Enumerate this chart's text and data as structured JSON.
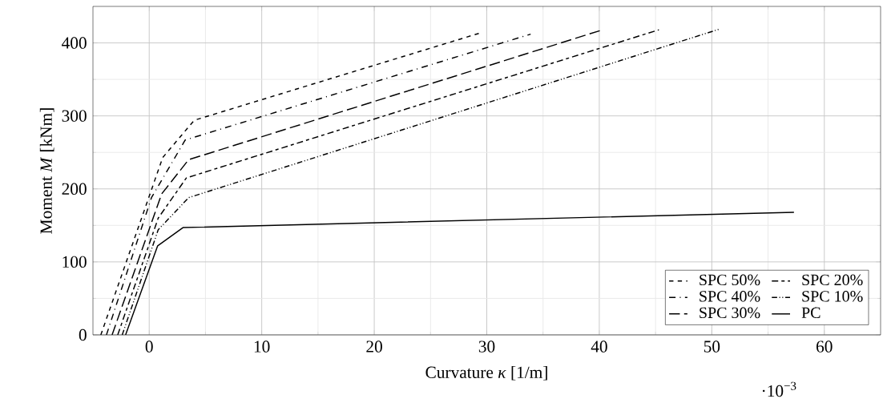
{
  "chart_data": {
    "type": "line",
    "xlabel": "Curvature *κ* [1/m]",
    "ylabel": "Moment *M* [kNm]",
    "annotations": [
      "·10$^{−3}$"
    ],
    "xlim": [
      -5,
      65
    ],
    "ylim": [
      0,
      450
    ],
    "xticks": [
      0,
      10,
      20,
      30,
      40,
      50,
      60
    ],
    "yticks": [
      0,
      100,
      200,
      300,
      400
    ],
    "grid": true,
    "legend": "bottom right",
    "marker": "none",
    "series": [
      {
        "name": "SPC 50%",
        "color": "#000000",
        "line_style": "dashed",
        "x": [
          -4.3,
          1.2,
          4.0,
          29.5
        ],
        "values": [
          0,
          243,
          294,
          414
        ]
      },
      {
        "name": "SPC 40%",
        "color": "#000000",
        "line_style": "loosely dash dot",
        "x": [
          -3.8,
          0.2,
          3.2,
          33.9
        ],
        "values": [
          0,
          188,
          267,
          412
        ]
      },
      {
        "name": "SPC 30%",
        "color": "#000000",
        "line_style": "long dashed",
        "x": [
          -3.3,
          1.1,
          3.5,
          40.1
        ],
        "values": [
          0,
          193,
          240,
          417
        ]
      },
      {
        "name": "SPC 20%",
        "color": "#000000",
        "line_style": "dash dash dot",
        "x": [
          -2.8,
          0.8,
          3.3,
          45.3
        ],
        "values": [
          0,
          160,
          215,
          418
        ]
      },
      {
        "name": "SPC 10%",
        "color": "#000000",
        "line_style": "dash dot dot",
        "x": [
          -2.4,
          0.8,
          3.5,
          50.7
        ],
        "values": [
          0,
          144,
          188,
          419
        ]
      },
      {
        "name": "PC",
        "color": "#000000",
        "line_style": "solid",
        "x": [
          -2.1,
          0.75,
          3.0,
          57.3
        ],
        "values": [
          0,
          122,
          147,
          168
        ]
      }
    ]
  }
}
